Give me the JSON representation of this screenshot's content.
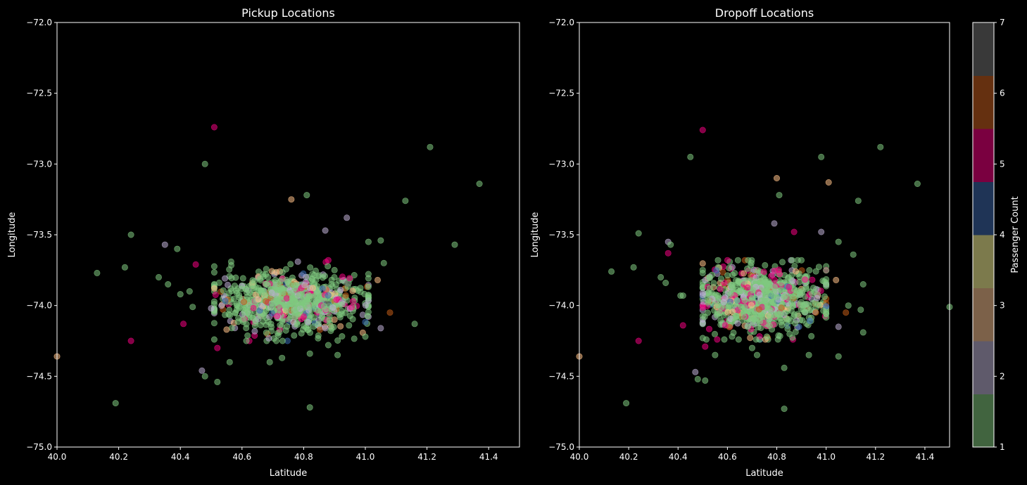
{
  "colorbar": {
    "label": "Passenger Count",
    "min": 1,
    "max": 7,
    "ticks": [
      "1",
      "2",
      "3",
      "4",
      "5",
      "6",
      "7"
    ],
    "bands": [
      "#41643f",
      "#5f5a6b",
      "#7c6149",
      "#7c7a4c",
      "#1f3456",
      "#7a0040",
      "#653010",
      "#393939"
    ]
  },
  "chart_data": [
    {
      "type": "scatter",
      "title": "Pickup Locations",
      "xlabel": "Latitude",
      "ylabel": "Longitude",
      "xlim": [
        40.0,
        41.5
      ],
      "ylim": [
        -75.0,
        -72.0
      ],
      "xticks": [
        "40.0",
        "40.2",
        "40.4",
        "40.6",
        "40.8",
        "41.0",
        "41.2",
        "41.4"
      ],
      "yticks": [
        "−75.0",
        "−74.5",
        "−74.0",
        "−73.5",
        "−73.0",
        "−72.5",
        "−72.0"
      ],
      "cluster": {
        "center": [
          40.75,
          -73.97
        ],
        "spread": [
          0.12,
          0.1
        ],
        "approx_points": 900
      },
      "points": [
        [
          40.51,
          -72.74,
          5
        ],
        [
          40.48,
          -73.0,
          1
        ],
        [
          41.21,
          -72.88,
          1
        ],
        [
          41.37,
          -73.14,
          1
        ],
        [
          40.76,
          -73.25,
          3
        ],
        [
          40.81,
          -73.22,
          1
        ],
        [
          41.13,
          -73.26,
          1
        ],
        [
          40.94,
          -73.38,
          2
        ],
        [
          40.87,
          -73.47,
          2
        ],
        [
          40.24,
          -73.5,
          1
        ],
        [
          40.35,
          -73.57,
          2
        ],
        [
          40.39,
          -73.6,
          1
        ],
        [
          41.29,
          -73.57,
          1
        ],
        [
          41.05,
          -73.54,
          1
        ],
        [
          41.01,
          -73.55,
          1
        ],
        [
          40.22,
          -73.73,
          1
        ],
        [
          40.13,
          -73.77,
          1
        ],
        [
          40.33,
          -73.8,
          1
        ],
        [
          40.36,
          -73.85,
          1
        ],
        [
          40.4,
          -73.92,
          1
        ],
        [
          40.43,
          -73.9,
          1
        ],
        [
          40.45,
          -73.71,
          5
        ],
        [
          41.06,
          -73.7,
          1
        ],
        [
          41.04,
          -73.82,
          3
        ],
        [
          41.08,
          -74.05,
          6
        ],
        [
          41.16,
          -74.13,
          1
        ],
        [
          41.05,
          -74.16,
          2
        ],
        [
          40.41,
          -74.13,
          5
        ],
        [
          40.24,
          -74.25,
          5
        ],
        [
          40.5,
          -74.02,
          2
        ],
        [
          40.51,
          -74.24,
          1
        ],
        [
          40.52,
          -74.3,
          5
        ],
        [
          40.55,
          -74.17,
          3
        ],
        [
          40.56,
          -74.4,
          1
        ],
        [
          40.47,
          -74.46,
          2
        ],
        [
          40.48,
          -74.5,
          1
        ],
        [
          40.52,
          -74.54,
          1
        ],
        [
          40.19,
          -74.69,
          1
        ],
        [
          40.0,
          -74.36,
          3
        ],
        [
          40.82,
          -74.72,
          1
        ],
        [
          40.69,
          -74.4,
          1
        ],
        [
          40.73,
          -74.37,
          1
        ],
        [
          40.91,
          -74.35,
          1
        ],
        [
          40.82,
          -74.34,
          1
        ],
        [
          40.88,
          -74.28,
          1
        ],
        [
          41.0,
          -74.22,
          1
        ],
        [
          40.9,
          -74.1,
          3
        ],
        [
          40.96,
          -73.97,
          5
        ],
        [
          40.44,
          -74.01,
          1
        ],
        [
          40.9,
          -73.75,
          1
        ],
        [
          40.88,
          -73.68,
          5
        ],
        [
          40.87,
          -74.16,
          2
        ]
      ]
    },
    {
      "type": "scatter",
      "title": "Dropoff Locations",
      "xlabel": "Latitude",
      "ylabel": "Longitude",
      "xlim": [
        40.0,
        41.5
      ],
      "ylim": [
        -75.0,
        -72.0
      ],
      "xticks": [
        "40.0",
        "40.2",
        "40.4",
        "40.6",
        "40.8",
        "41.0",
        "41.2",
        "41.4"
      ],
      "yticks": [
        "−75.0",
        "−74.5",
        "−74.0",
        "−73.5",
        "−73.0",
        "−72.5",
        "−72.0"
      ],
      "cluster": {
        "center": [
          40.74,
          -73.96
        ],
        "spread": [
          0.12,
          0.12
        ],
        "approx_points": 900
      },
      "points": [
        [
          40.5,
          -72.76,
          5
        ],
        [
          40.45,
          -72.95,
          1
        ],
        [
          41.22,
          -72.88,
          1
        ],
        [
          40.98,
          -72.95,
          1
        ],
        [
          41.37,
          -73.14,
          1
        ],
        [
          40.8,
          -73.1,
          3
        ],
        [
          41.01,
          -73.13,
          3
        ],
        [
          40.81,
          -73.22,
          1
        ],
        [
          41.13,
          -73.26,
          1
        ],
        [
          40.79,
          -73.42,
          2
        ],
        [
          40.98,
          -73.48,
          2
        ],
        [
          40.87,
          -73.48,
          5
        ],
        [
          40.24,
          -73.49,
          1
        ],
        [
          40.36,
          -73.55,
          2
        ],
        [
          40.37,
          -73.57,
          1
        ],
        [
          41.05,
          -73.55,
          1
        ],
        [
          41.11,
          -73.64,
          1
        ],
        [
          40.22,
          -73.73,
          1
        ],
        [
          40.13,
          -73.76,
          1
        ],
        [
          40.36,
          -73.63,
          5
        ],
        [
          40.33,
          -73.8,
          1
        ],
        [
          40.35,
          -73.84,
          1
        ],
        [
          40.41,
          -73.93,
          1
        ],
        [
          40.42,
          -73.93,
          1
        ],
        [
          41.15,
          -73.85,
          1
        ],
        [
          41.04,
          -73.82,
          3
        ],
        [
          41.09,
          -74.0,
          1
        ],
        [
          41.08,
          -74.05,
          6
        ],
        [
          41.14,
          -74.03,
          1
        ],
        [
          41.15,
          -74.19,
          1
        ],
        [
          41.05,
          -74.15,
          2
        ],
        [
          41.5,
          -74.01,
          1
        ],
        [
          40.42,
          -74.14,
          5
        ],
        [
          40.24,
          -74.25,
          5
        ],
        [
          40.5,
          -74.23,
          1
        ],
        [
          40.51,
          -74.29,
          5
        ],
        [
          40.55,
          -74.35,
          1
        ],
        [
          40.47,
          -74.47,
          2
        ],
        [
          40.48,
          -74.52,
          1
        ],
        [
          40.51,
          -74.53,
          1
        ],
        [
          40.19,
          -74.69,
          1
        ],
        [
          40.0,
          -74.36,
          3
        ],
        [
          40.83,
          -74.73,
          1
        ],
        [
          40.83,
          -74.44,
          1
        ],
        [
          41.05,
          -74.36,
          1
        ],
        [
          40.93,
          -74.35,
          1
        ],
        [
          40.72,
          -74.35,
          1
        ],
        [
          40.7,
          -74.3,
          1
        ]
      ]
    }
  ]
}
